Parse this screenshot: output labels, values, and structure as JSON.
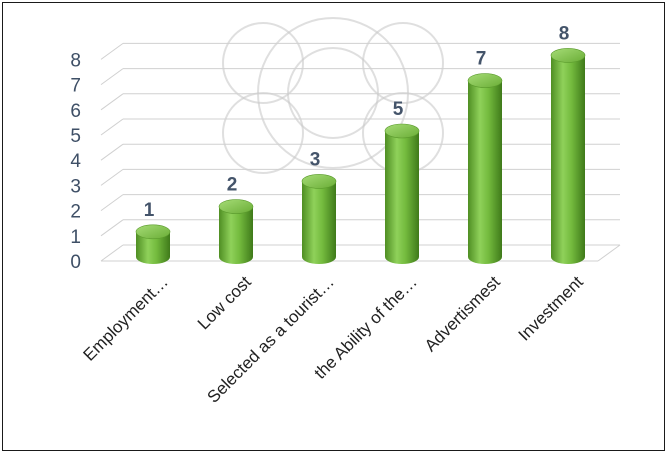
{
  "chart_data": {
    "type": "bar",
    "style": "3d-cylinder",
    "categories": [
      "Employment…",
      "Low cost",
      "Selected as a tourist…",
      "the Ability of the…",
      "Advertismest",
      "Investment"
    ],
    "values": [
      1,
      2,
      3,
      5,
      7,
      8
    ],
    "data_labels": [
      "1",
      "2",
      "3",
      "5",
      "7",
      "8"
    ],
    "y_ticks": [
      "0",
      "1",
      "2",
      "3",
      "4",
      "5",
      "6",
      "7",
      "8"
    ],
    "ylim": [
      0,
      8
    ],
    "grid": true,
    "bar_color": "#7ac143",
    "title": "",
    "xlabel": "",
    "ylabel": ""
  }
}
